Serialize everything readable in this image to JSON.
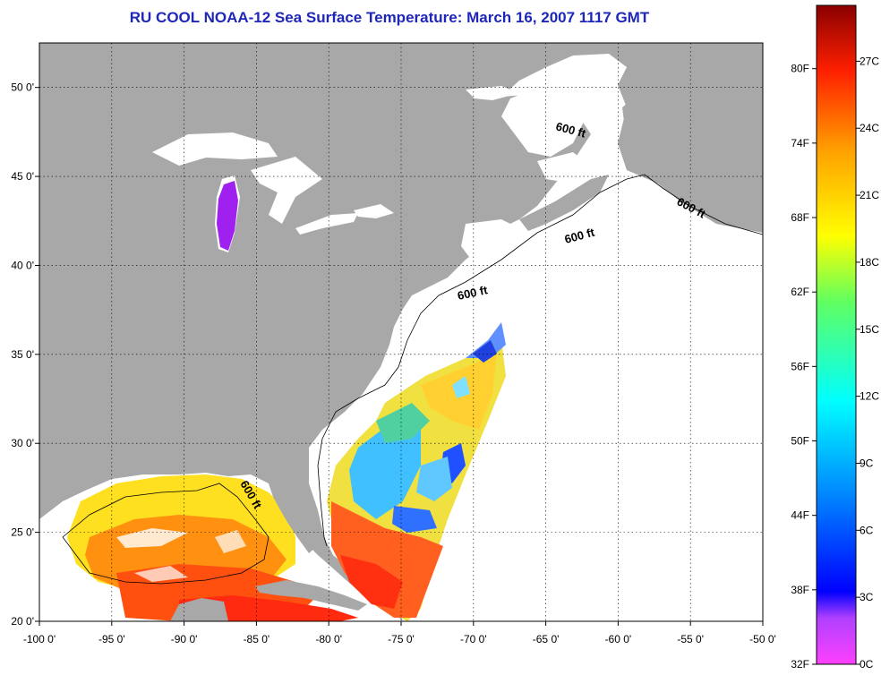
{
  "title": "RU COOL  NOAA-12  Sea Surface Temperature:  March 16, 2007 1117 GMT",
  "map": {
    "lon_labels": [
      "-100 0'",
      "-95 0'",
      "-90 0'",
      "-85 0'",
      "-80 0'",
      "-75 0'",
      "-70 0'",
      "-65 0'",
      "-60 0'",
      "-55 0'",
      "-50 0'"
    ],
    "lon_values": [
      -100,
      -95,
      -90,
      -85,
      -80,
      -75,
      -70,
      -65,
      -60,
      -55,
      -50
    ],
    "lat_labels": [
      "50 0'",
      "45 0'",
      "40 0'",
      "35 0'",
      "30 0'",
      "25 0'",
      "20 0'"
    ],
    "lat_values": [
      50,
      45,
      40,
      35,
      30,
      25,
      20
    ],
    "lon_range": [
      -100,
      -50
    ],
    "lat_range": [
      20,
      52.5
    ],
    "grid": "dotted",
    "contour_label": "600 ft",
    "colors": {
      "land": "#a8a8a8",
      "water": "#ffffff",
      "title": "#1f27b8"
    }
  },
  "colorbar": {
    "f_labels": [
      "80F",
      "74F",
      "68F",
      "62F",
      "56F",
      "50F",
      "44F",
      "38F",
      "32F"
    ],
    "f_values": [
      80,
      74,
      68,
      62,
      56,
      50,
      44,
      38,
      32
    ],
    "c_labels": [
      "27C",
      "24C",
      "21C",
      "18C",
      "15C",
      "12C",
      "9C",
      "6C",
      "3C",
      "0C"
    ],
    "c_values": [
      27,
      24,
      21,
      18,
      15,
      12,
      9,
      6,
      3,
      0
    ],
    "range_c": [
      0,
      29.5
    ],
    "stops": [
      "#ff40ff",
      "#8a2be2",
      "#0000ff",
      "#00a0ff",
      "#00ffff",
      "#40ff80",
      "#ffff00",
      "#ff9900",
      "#ff0000",
      "#8b0000"
    ]
  }
}
